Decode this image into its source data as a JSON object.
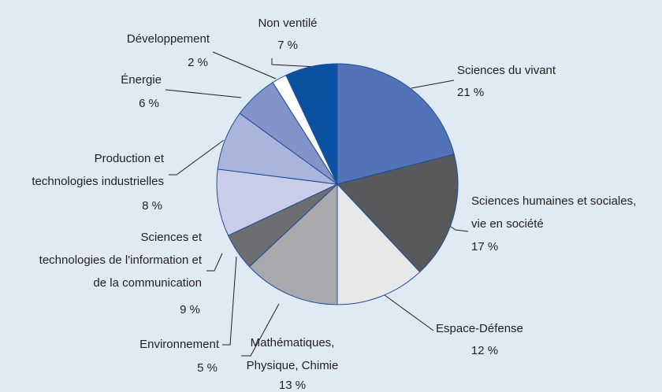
{
  "chart_data": {
    "type": "pie",
    "categories": [
      [
        "Sciences du vivant"
      ],
      [
        "Sciences humaines et sociales,",
        "vie en société"
      ],
      [
        "Espace-Défense"
      ],
      [
        "Mathématiques,",
        "Physique, Chimie"
      ],
      [
        "Environnement"
      ],
      [
        "Sciences et",
        "technologies de l'information et",
        "de la communication"
      ],
      [
        "Production et",
        "technologies industrielles"
      ],
      [
        "Énergie"
      ],
      [
        "Développement"
      ],
      [
        "Non ventilé"
      ]
    ],
    "values": [
      21,
      17,
      12,
      13,
      5,
      9,
      8,
      6,
      2,
      7
    ],
    "value_labels": [
      "21 %",
      "17 %",
      "12 %",
      "13 %",
      "5 %",
      "9 %",
      "8 %",
      "6 %",
      "2 %",
      "7 %"
    ],
    "colors": [
      "#5373b9",
      "#58595b",
      "#e7e8e9",
      "#a7a9ac",
      "#6d6e71",
      "#c9cde9",
      "#a9b5dc",
      "#8193c9",
      "#ffffff",
      "#0a51a1"
    ]
  }
}
